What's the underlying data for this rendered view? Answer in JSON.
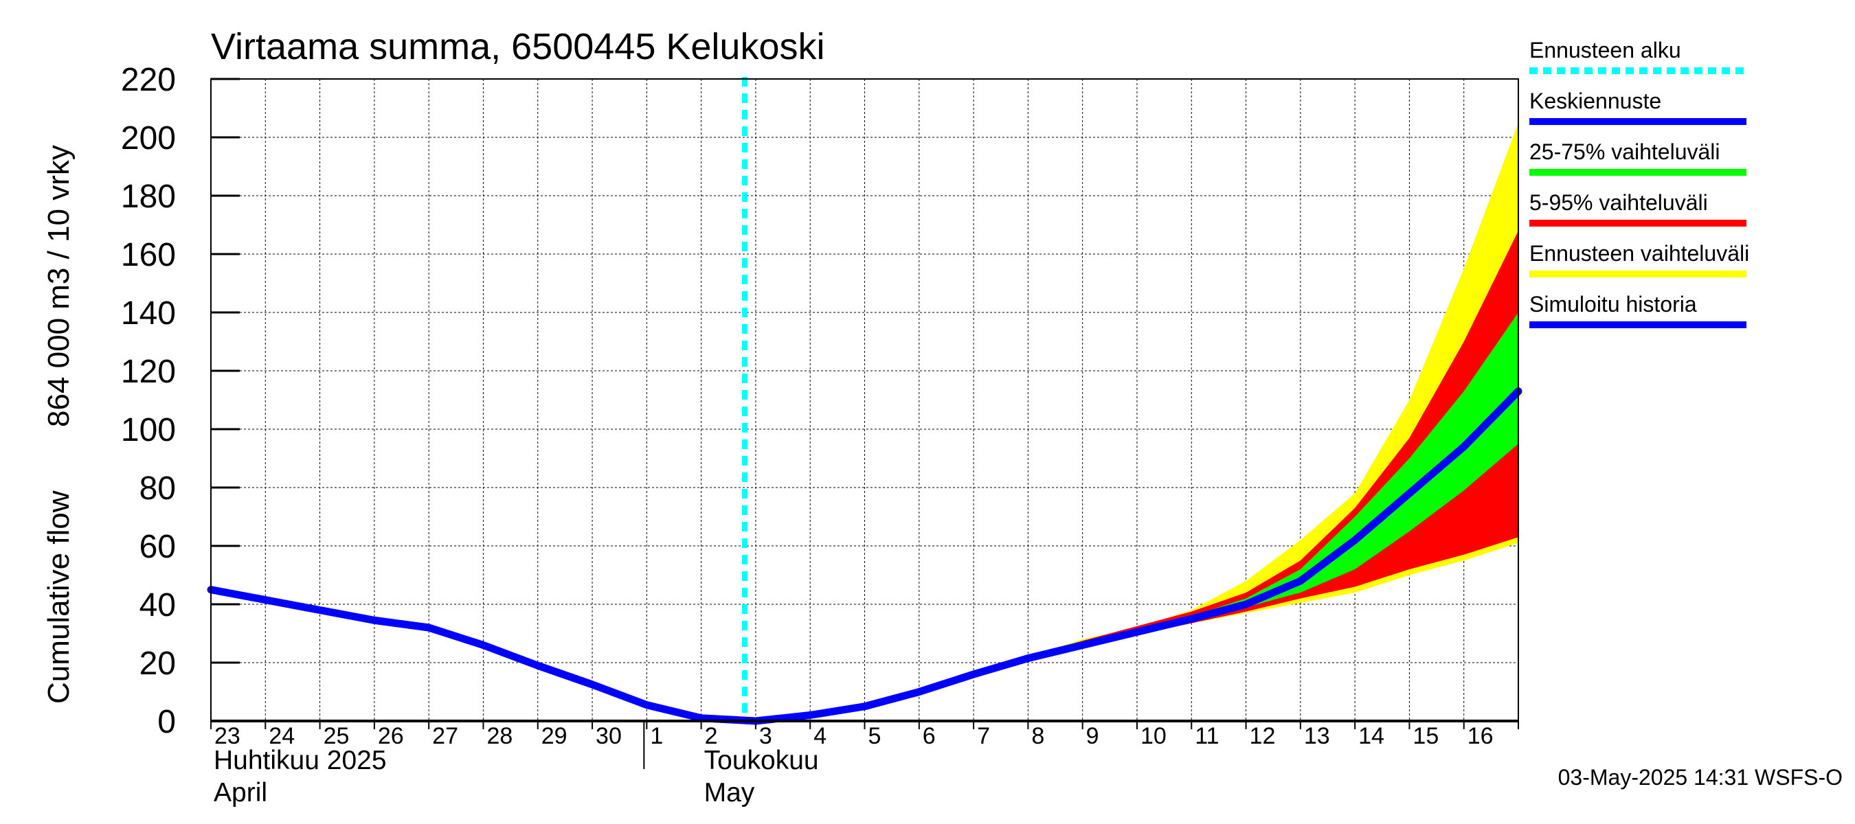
{
  "chart_data": {
    "type": "area",
    "title": "Virtaama summa, 6500445 Kelukoski",
    "ylabel_top": "864 000 m3 / 10 vrky",
    "ylabel_bottom": "Cumulative flow",
    "ylim": [
      0,
      220
    ],
    "yticks": [
      0,
      20,
      40,
      60,
      80,
      100,
      120,
      140,
      160,
      180,
      200,
      220
    ],
    "grid": true,
    "x_index_range": [
      0,
      24
    ],
    "x_tick_labels": [
      {
        "i": 0,
        "label": "23"
      },
      {
        "i": 1,
        "label": "24"
      },
      {
        "i": 2,
        "label": "25"
      },
      {
        "i": 3,
        "label": "26"
      },
      {
        "i": 4,
        "label": "27"
      },
      {
        "i": 5,
        "label": "28"
      },
      {
        "i": 6,
        "label": "29"
      },
      {
        "i": 7,
        "label": "30"
      },
      {
        "i": 8,
        "label": "1"
      },
      {
        "i": 9,
        "label": "2"
      },
      {
        "i": 10,
        "label": "3"
      },
      {
        "i": 11,
        "label": "4"
      },
      {
        "i": 12,
        "label": "5"
      },
      {
        "i": 13,
        "label": "6"
      },
      {
        "i": 14,
        "label": "7"
      },
      {
        "i": 15,
        "label": "8"
      },
      {
        "i": 16,
        "label": "9"
      },
      {
        "i": 17,
        "label": "10"
      },
      {
        "i": 18,
        "label": "11"
      },
      {
        "i": 19,
        "label": "12"
      },
      {
        "i": 20,
        "label": "13"
      },
      {
        "i": 21,
        "label": "14"
      },
      {
        "i": 22,
        "label": "15"
      },
      {
        "i": 23,
        "label": "16"
      }
    ],
    "month_labels": [
      {
        "i": 0,
        "line1": "Huhtikuu  2025",
        "line2": "April"
      },
      {
        "i": 9,
        "line1": "Toukokuu",
        "line2": "May"
      }
    ],
    "month_separator_index": 8,
    "forecast_start_index": 10,
    "legend_position": "right",
    "series": [
      {
        "name": "Ennusteen vaihteluväli",
        "kind": "band",
        "color": "#ffff00",
        "x": [
          10,
          11,
          12,
          13,
          14,
          15,
          16,
          17,
          18,
          19,
          20,
          21,
          22,
          23,
          24
        ],
        "lower": [
          0,
          2,
          5,
          10,
          16,
          21,
          25.5,
          29.5,
          33.5,
          37,
          40.5,
          44,
          50,
          55,
          61
        ],
        "upper": [
          0,
          2,
          5,
          10,
          16,
          22,
          28,
          32,
          38,
          48,
          62,
          78,
          110,
          155,
          205
        ]
      },
      {
        "name": "5-95% vaihteluväli",
        "kind": "band",
        "color": "#ff0000",
        "x": [
          10,
          11,
          12,
          13,
          14,
          15,
          16,
          17,
          18,
          19,
          20,
          21,
          22,
          23,
          24
        ],
        "lower": [
          0,
          2,
          5,
          10,
          16,
          21.5,
          25.5,
          29.5,
          33.5,
          37.5,
          42,
          46,
          52,
          57,
          63
        ],
        "upper": [
          0,
          2,
          5,
          10,
          16,
          22,
          27.5,
          32.5,
          37.5,
          44,
          55,
          73,
          97,
          130,
          168
        ]
      },
      {
        "name": "25-75% vaihteluväli",
        "kind": "band",
        "color": "#00ff00",
        "x": [
          10,
          11,
          12,
          13,
          14,
          15,
          16,
          17,
          18,
          19,
          20,
          21,
          22,
          23,
          24
        ],
        "lower": [
          0,
          2,
          5,
          10,
          16,
          21.5,
          26,
          30.5,
          35,
          39,
          44,
          52,
          65,
          79,
          95
        ],
        "upper": [
          0,
          2,
          5,
          10,
          16,
          21.5,
          26.5,
          31,
          36,
          42,
          52,
          70,
          90,
          113,
          140
        ]
      },
      {
        "name": "Keskiennuste",
        "kind": "line",
        "color": "#0000ff",
        "x": [
          10,
          11,
          12,
          13,
          14,
          15,
          16,
          17,
          18,
          19,
          20,
          21,
          22,
          23,
          24
        ],
        "y": [
          0,
          2,
          5,
          10,
          16,
          21.5,
          26,
          30.5,
          35,
          40,
          48,
          62,
          78,
          94,
          113
        ]
      },
      {
        "name": "Simuloitu historia",
        "kind": "line",
        "color": "#0000ff",
        "x": [
          0,
          1,
          2,
          3,
          4,
          5,
          6,
          7,
          8,
          9,
          10
        ],
        "y": [
          45,
          41.5,
          38,
          34.5,
          32,
          26,
          19,
          12.5,
          5.5,
          1,
          0
        ]
      },
      {
        "name": "Ennusteen alku",
        "kind": "vline",
        "color": "#00ffff",
        "x": [
          9.8
        ]
      }
    ]
  },
  "legend": [
    {
      "label": "Ennusteen alku",
      "color": "#00ffff",
      "dashed": true
    },
    {
      "label": "Keskiennuste",
      "color": "#0000ff",
      "dashed": false
    },
    {
      "label": "25-75% vaihteluväli",
      "color": "#00ff00",
      "dashed": false
    },
    {
      "label": "5-95% vaihteluväli",
      "color": "#ff0000",
      "dashed": false
    },
    {
      "label": "Ennusteen vaihteluväli",
      "color": "#ffff00",
      "dashed": false
    },
    {
      "label": "Simuloitu historia",
      "color": "#0000ff",
      "dashed": false
    }
  ],
  "footer": "03-May-2025 14:31 WSFS-O"
}
